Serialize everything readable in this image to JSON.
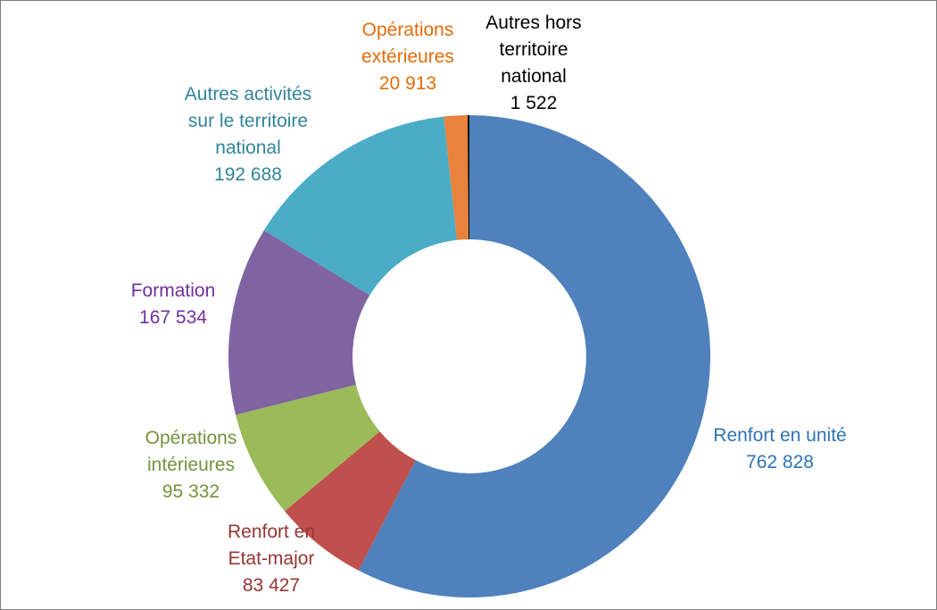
{
  "page": {
    "background_color": "#FFFFFF",
    "border_color": "#7F7F7F"
  },
  "chart_data": {
    "type": "pie",
    "subtype": "donut",
    "title": "",
    "categories": [
      "Renfort en unité",
      "Renfort en Etat-major",
      "Opérations intérieures",
      "Formation",
      "Autres activités sur le territoire national",
      "Opérations extérieures",
      "Autres hors territoire national"
    ],
    "values": [
      762828,
      83427,
      95332,
      167534,
      192688,
      20913,
      1522
    ],
    "total": 1324244,
    "colors": [
      "#4F81BD",
      "#C0504D",
      "#9BBB59",
      "#8064A2",
      "#4BACC6",
      "#E8823C",
      "#000000"
    ],
    "label_colors": [
      "#2E74B5",
      "#943634",
      "#76923C",
      "#7030A0",
      "#31859B",
      "#E36C0A",
      "#000000"
    ],
    "start_angle_deg": 0,
    "direction": "clockwise",
    "donut_hole_ratio": 0.485,
    "legend_position": "none",
    "grid": false,
    "labels": [
      {
        "text": "Renfort en unité\n762 828"
      },
      {
        "text": "Renfort en\nEtat-major\n83 427"
      },
      {
        "text": "Opérations\nintérieures\n95 332"
      },
      {
        "text": "Formation\n167 534"
      },
      {
        "text": "Autres activités\nsur le territoire\nnational\n192 688"
      },
      {
        "text": "Opérations\nextérieures\n20 913"
      },
      {
        "text": "Autres hors\nterritoire\nnational\n1 522"
      }
    ]
  }
}
